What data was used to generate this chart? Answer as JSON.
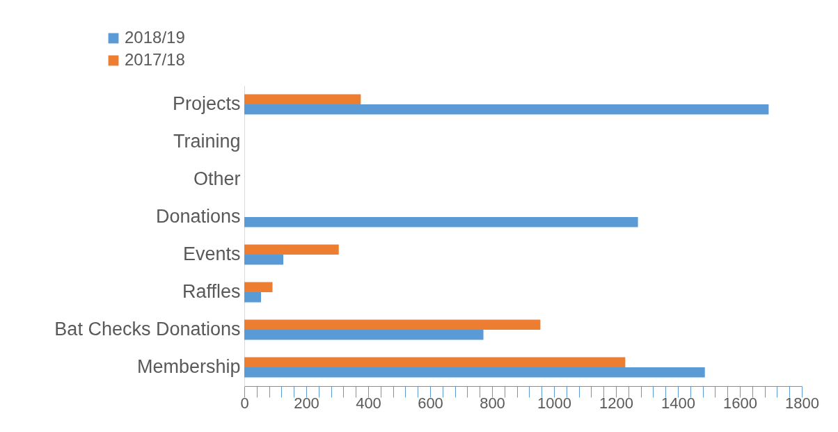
{
  "chart_data": {
    "type": "bar",
    "orientation": "horizontal",
    "categories": [
      "Projects",
      "Training",
      "Other",
      "Donations",
      "Events",
      "Raffles",
      "Bat Checks Donations",
      "Membership"
    ],
    "series": [
      {
        "name": "2018/19",
        "color": "#5b9bd5",
        "values": [
          1693,
          null,
          null,
          1271,
          126,
          54,
          772,
          1487
        ]
      },
      {
        "name": "2017/18",
        "color": "#ed7d31",
        "values": [
          376,
          null,
          null,
          null,
          305,
          91,
          956,
          1230
        ]
      }
    ],
    "xlim": [
      0,
      1800
    ],
    "xticks": [
      0,
      {
        "value": 40,
        "label": null
      },
      {
        "value": 80,
        "label": null
      },
      {
        "value": 120,
        "label": null
      },
      {
        "value": 160,
        "label": null
      },
      200,
      {
        "value": 240,
        "label": null
      },
      {
        "value": 280,
        "label": null
      },
      {
        "value": 320,
        "label": null
      },
      {
        "value": 360,
        "label": null
      },
      400,
      {
        "value": 440,
        "label": null
      },
      {
        "value": 480,
        "label": null
      },
      {
        "value": 520,
        "label": null
      },
      {
        "value": 560,
        "label": null
      },
      600,
      {
        "value": 640,
        "label": null
      },
      {
        "value": 680,
        "label": null
      },
      {
        "value": 720,
        "label": null
      },
      {
        "value": 760,
        "label": null
      },
      800,
      {
        "value": 840,
        "label": null
      },
      {
        "value": 880,
        "label": null
      },
      {
        "value": 920,
        "label": null
      },
      {
        "value": 960,
        "label": null
      },
      1000,
      {
        "value": 1040,
        "label": null
      },
      {
        "value": 1080,
        "label": null
      },
      {
        "value": 1120,
        "label": null
      },
      {
        "value": 1160,
        "label": null
      },
      1200,
      {
        "value": 1240,
        "label": null
      },
      {
        "value": 1280,
        "label": null
      },
      {
        "value": 1320,
        "label": null
      },
      {
        "value": 1360,
        "label": null
      },
      1400,
      {
        "value": 1440,
        "label": null
      },
      {
        "value": 1480,
        "label": null
      },
      {
        "value": 1520,
        "label": null
      },
      {
        "value": 1560,
        "label": null
      },
      1600,
      {
        "value": 1640,
        "label": null
      },
      {
        "value": 1680,
        "label": null
      },
      {
        "value": 1720,
        "label": null
      },
      {
        "value": 1760,
        "label": null
      },
      1800
    ],
    "grid": false,
    "legend": "top left"
  }
}
